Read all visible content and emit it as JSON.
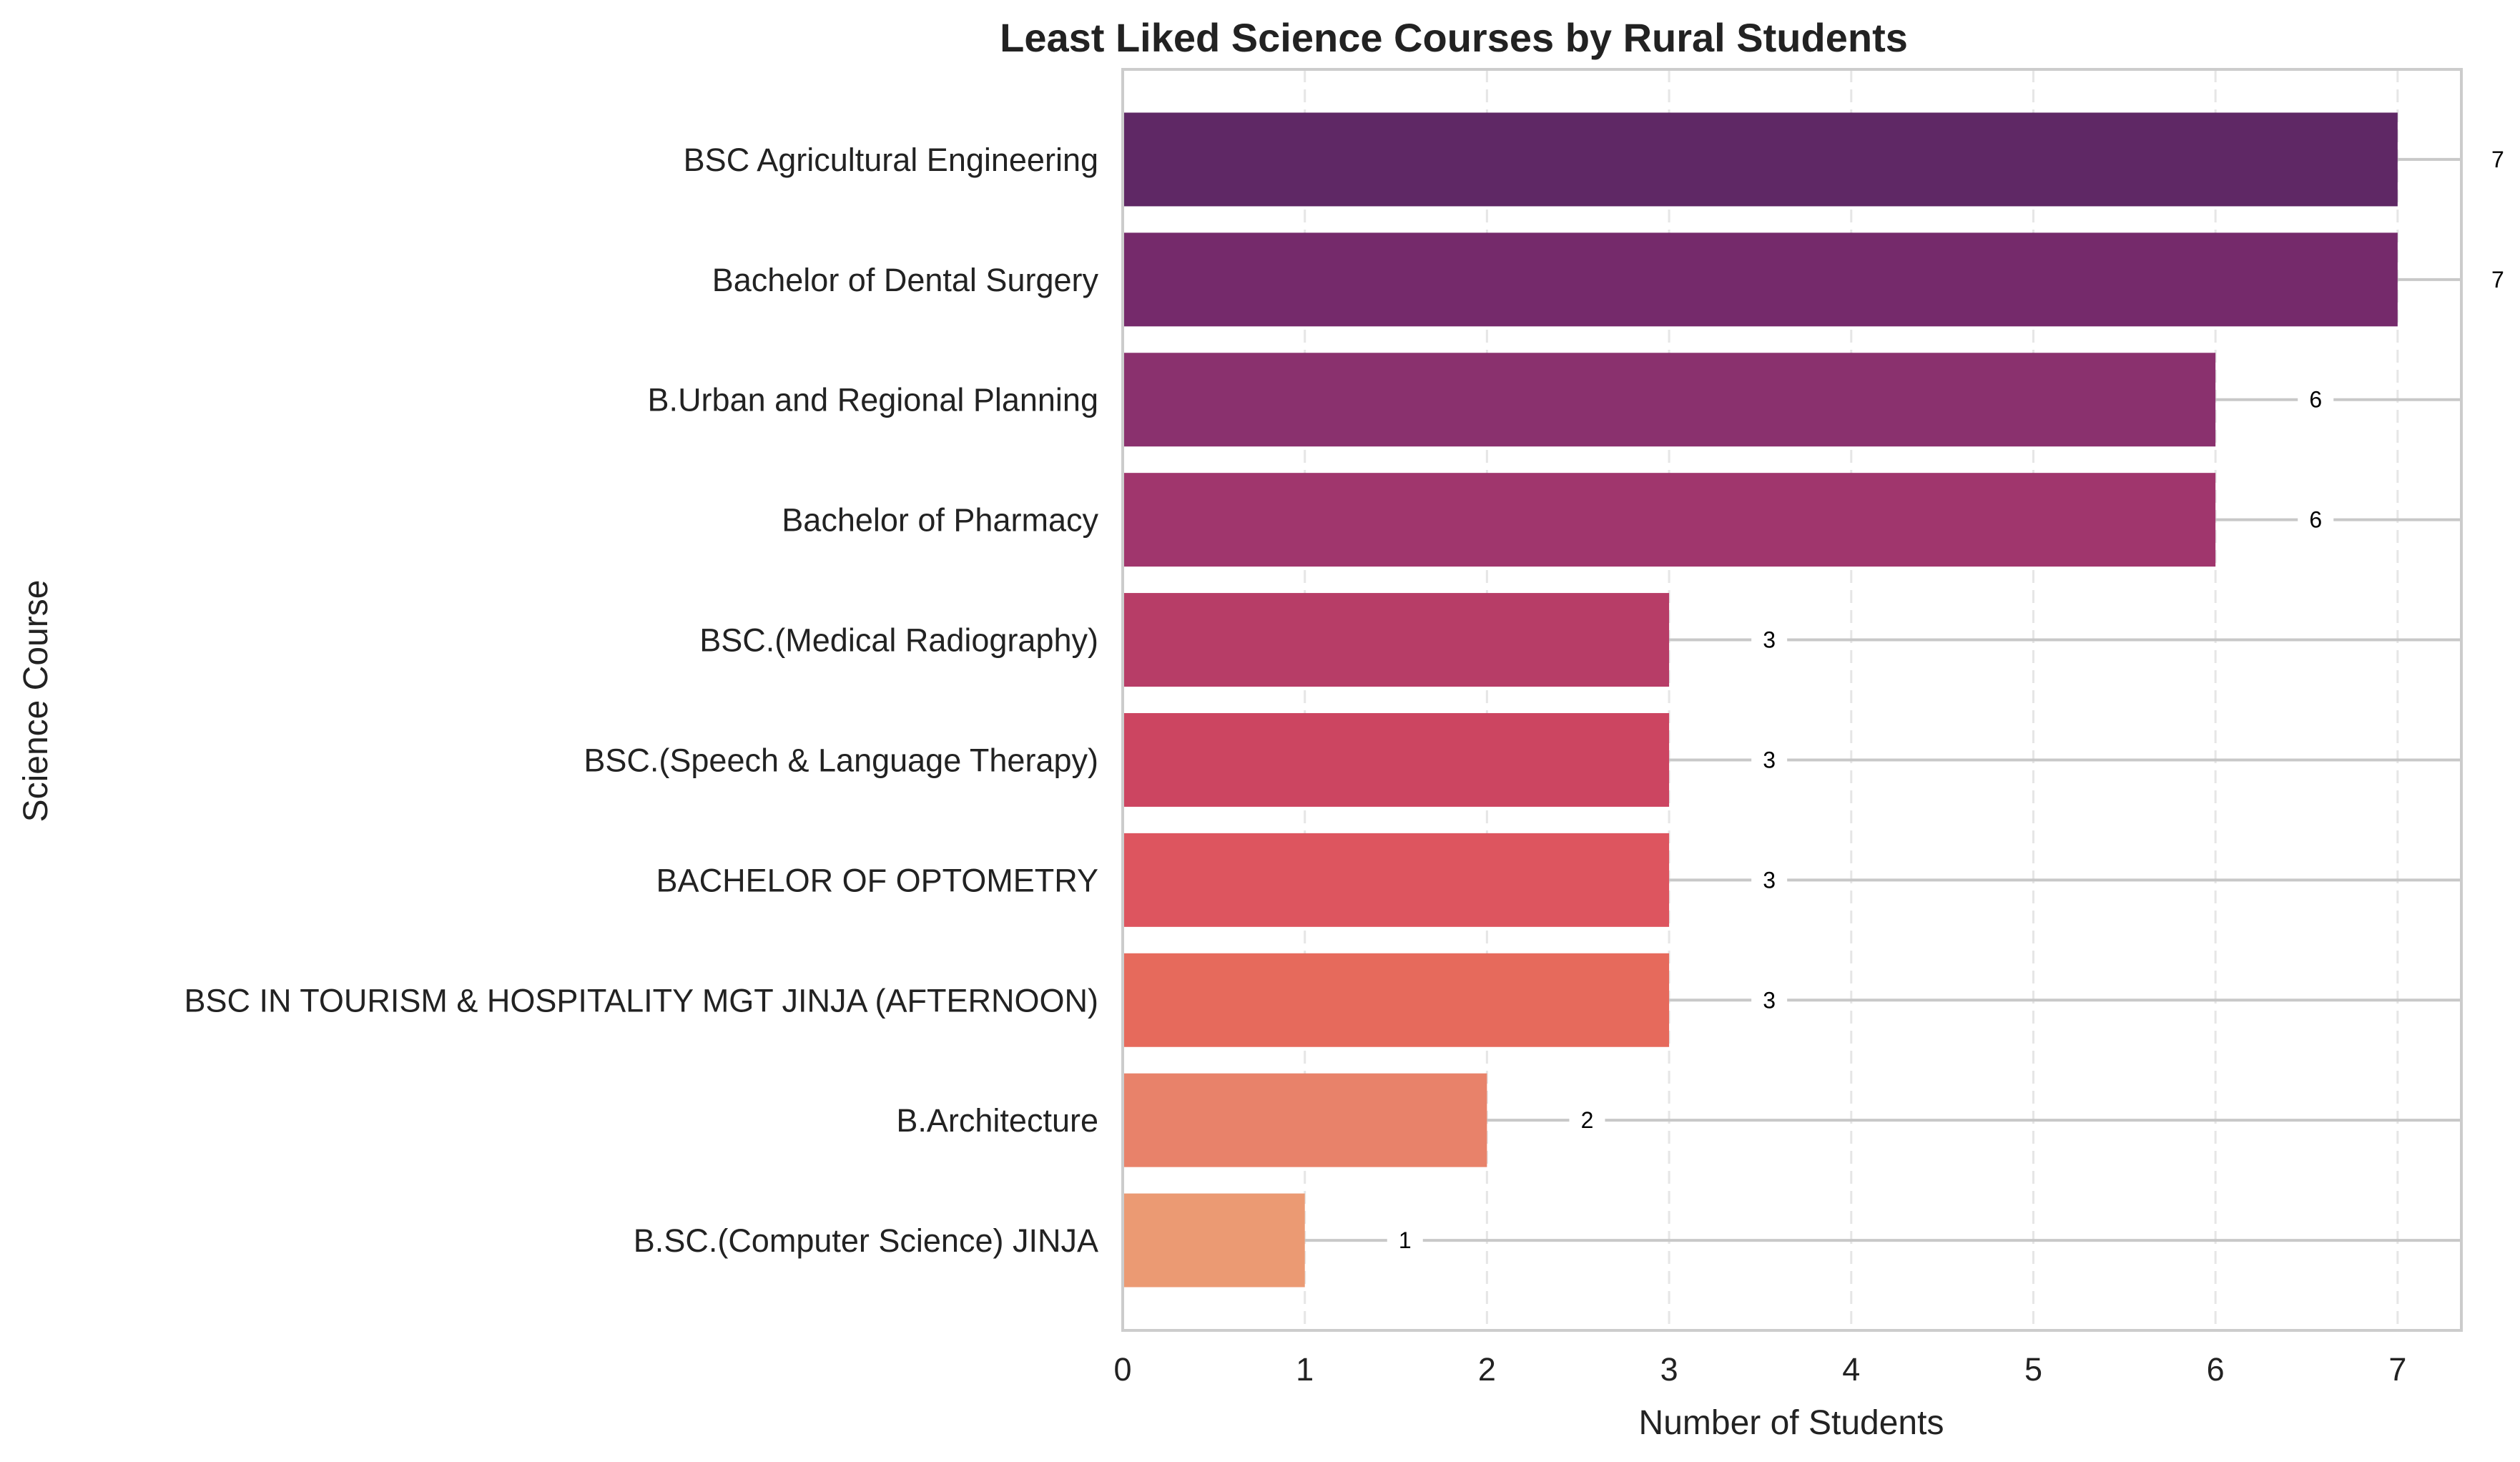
{
  "chart_data": {
    "type": "bar",
    "orientation": "horizontal",
    "title": "Least Liked Science Courses by Rural Students",
    "xlabel": "Number of Students",
    "ylabel": "Science Course",
    "categories": [
      "BSC Agricultural Engineering",
      "Bachelor of Dental Surgery",
      "B.Urban and Regional Planning",
      "Bachelor of Pharmacy",
      "BSC.(Medical Radiography)",
      "BSC.(Speech & Language Therapy)",
      "BACHELOR OF OPTOMETRY",
      "BSC IN TOURISM & HOSPITALITY MGT JINJA (AFTERNOON)",
      "B.Architecture",
      "B.SC.(Computer Science) JINJA"
    ],
    "values": [
      7,
      7,
      6,
      6,
      3,
      3,
      3,
      3,
      2,
      1
    ],
    "data_labels": [
      "7",
      "7",
      "6",
      "6",
      "3",
      "3",
      "3",
      "3",
      "2",
      "1"
    ],
    "colors": [
      "#5f2865",
      "#752a6b",
      "#8a316e",
      "#a0366d",
      "#b73d67",
      "#cc4561",
      "#dd555f",
      "#e66a5c",
      "#e8826a",
      "#eb9a73"
    ],
    "xlim": [
      0,
      7.35
    ],
    "xticks": [
      0,
      1,
      2,
      3,
      4,
      5,
      6,
      7
    ],
    "xtick_labels": [
      "0",
      "1",
      "2",
      "3",
      "4",
      "5",
      "6",
      "7"
    ],
    "grid": "x-axis dashed",
    "legend": "none"
  }
}
